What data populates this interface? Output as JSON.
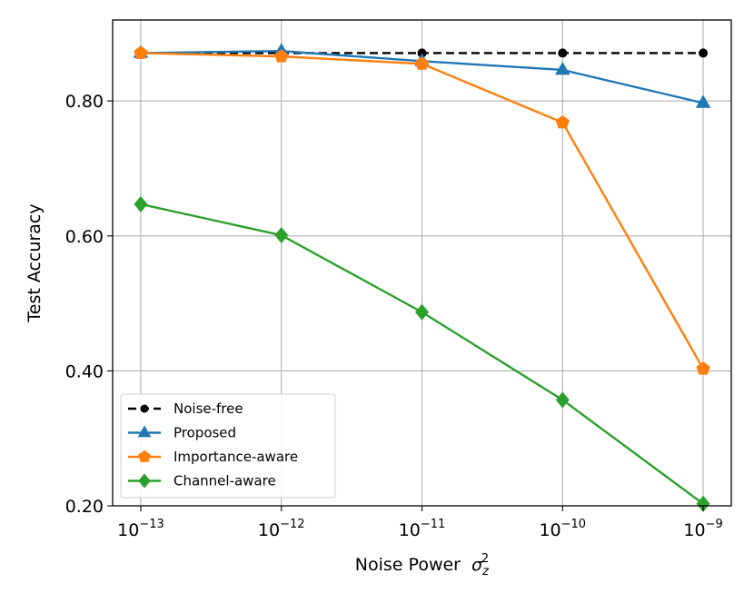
{
  "chart_data": {
    "type": "line",
    "title": "",
    "xlabel": "Noise Power",
    "xlabel_symbol": "σ",
    "xlabel_sub": "z",
    "xlabel_sup": "2",
    "ylabel": "Test Accuracy",
    "x": [
      -13,
      -12,
      -11,
      -10,
      -9
    ],
    "x_tick_base": "10",
    "x_tick_exponents": [
      "−13",
      "−12",
      "−11",
      "−10",
      "−9"
    ],
    "xscale": "log",
    "ylim": [
      0.2,
      0.92
    ],
    "y_ticks": [
      0.2,
      0.4,
      0.6,
      0.8
    ],
    "y_tick_labels": [
      "0.20",
      "0.40",
      "0.60",
      "0.80"
    ],
    "grid": true,
    "legend_position": "lower-left",
    "series": [
      {
        "name": "Noise-free",
        "color": "#000000",
        "marker": "circle",
        "linestyle": "dashed",
        "values": [
          0.871,
          0.871,
          0.871,
          0.871,
          0.871
        ]
      },
      {
        "name": "Proposed",
        "color": "#1f77b4",
        "marker": "triangle",
        "linestyle": "solid",
        "values": [
          0.871,
          0.874,
          0.859,
          0.846,
          0.797
        ]
      },
      {
        "name": "Importance-aware",
        "color": "#ff7f0e",
        "marker": "pentagon",
        "linestyle": "solid",
        "values": [
          0.871,
          0.866,
          0.855,
          0.768,
          0.403
        ]
      },
      {
        "name": "Channel-aware",
        "color": "#2ca02c",
        "marker": "diamond",
        "linestyle": "solid",
        "values": [
          0.647,
          0.601,
          0.487,
          0.357,
          0.203
        ]
      }
    ]
  }
}
